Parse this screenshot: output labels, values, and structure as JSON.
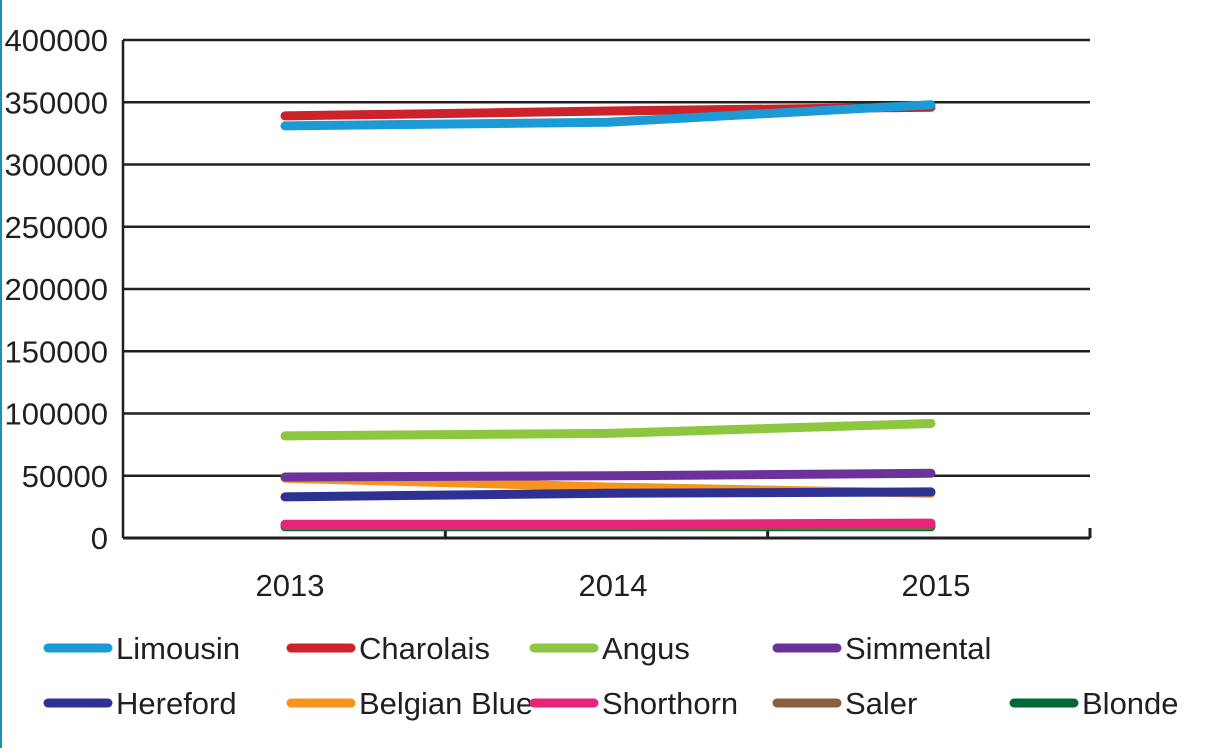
{
  "chart_data": {
    "type": "line",
    "title": "",
    "xlabel": "",
    "ylabel": "",
    "categories": [
      "2013",
      "2014",
      "2015"
    ],
    "ylim": [
      0,
      400000
    ],
    "yticks": [
      0,
      50000,
      100000,
      150000,
      200000,
      250000,
      300000,
      350000,
      400000
    ],
    "ytick_labels": [
      "0",
      "50000",
      "100000",
      "150000",
      "200000",
      "250000",
      "300000",
      "350000",
      "400000"
    ],
    "grid": true,
    "legend_position": "bottom",
    "series": [
      {
        "name": "Limousin",
        "color": "#1b9ad6",
        "values": [
          331000,
          334000,
          348000
        ]
      },
      {
        "name": "Charolais",
        "color": "#cc2229",
        "values": [
          339000,
          343000,
          346000
        ]
      },
      {
        "name": "Angus",
        "color": "#8dc63f",
        "values": [
          82000,
          84000,
          92000
        ]
      },
      {
        "name": "Simmental",
        "color": "#6b3399",
        "values": [
          49000,
          50000,
          52000
        ]
      },
      {
        "name": "Hereford",
        "color": "#2e3192",
        "values": [
          33000,
          36000,
          37000
        ]
      },
      {
        "name": "Belgian Blue",
        "color": "#f7941d",
        "values": [
          48000,
          41000,
          36000
        ]
      },
      {
        "name": "Shorthorn",
        "color": "#e8237a",
        "values": [
          11000,
          11000,
          12000
        ]
      },
      {
        "name": "Saler",
        "color": "#8b5e3c",
        "values": [
          10000,
          10000,
          10000
        ]
      },
      {
        "name": "Blonde",
        "color": "#006837",
        "values": [
          9000,
          9000,
          9000
        ]
      }
    ]
  }
}
